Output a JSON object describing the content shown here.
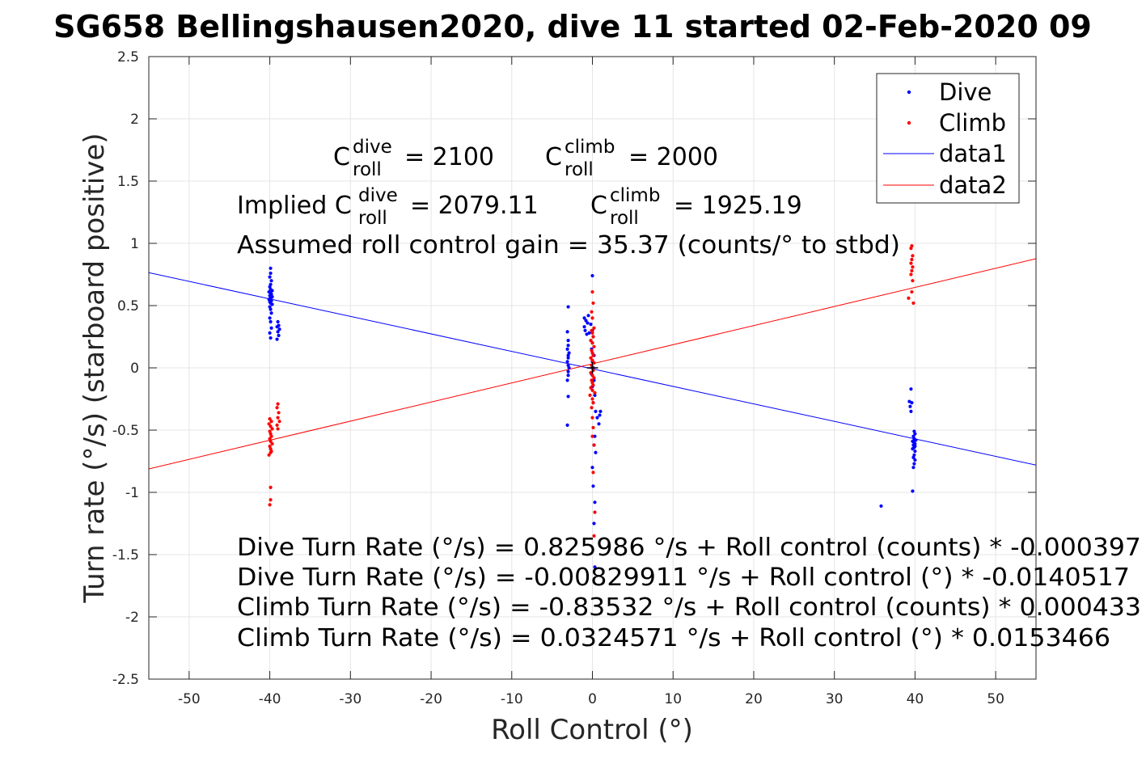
{
  "chart_data": {
    "type": "scatter",
    "title": "SG658 Bellingshausen2020, dive 11 started 02-Feb-2020 09",
    "xlabel": "Roll Control (°)",
    "ylabel": "Turn rate (°/s) (starboard positive)",
    "xlim": [
      -55,
      55
    ],
    "ylim": [
      -2.5,
      2.5
    ],
    "xticks": [
      -50,
      -40,
      -30,
      -20,
      -10,
      0,
      10,
      20,
      30,
      40,
      50
    ],
    "yticks": [
      -2.5,
      -2,
      -1.5,
      -1,
      -0.5,
      0,
      0.5,
      1,
      1.5,
      2,
      2.5
    ],
    "xtick_labels": [
      "-50",
      "-40",
      "-30",
      "-20",
      "-10",
      "0",
      "10",
      "20",
      "30",
      "40",
      "50"
    ],
    "ytick_labels": [
      "-2.5",
      "-2",
      "-1.5",
      "-1",
      "-0.5",
      "0",
      "0.5",
      "1",
      "1.5",
      "2",
      "2.5"
    ],
    "grid": true,
    "legend_position": "top-right",
    "legend": [
      "Dive",
      "Climb",
      "data1",
      "data2"
    ],
    "colors": {
      "dive": "#0000ff",
      "climb": "#ff0000",
      "axes": "#262626",
      "grid": "#e5e5e5"
    },
    "series": [
      {
        "name": "Dive",
        "kind": "points",
        "color": "#0000ff",
        "points": [
          [
            -39.9,
            0.8
          ],
          [
            -39.9,
            0.76
          ],
          [
            -40.0,
            0.73
          ],
          [
            -39.8,
            0.7
          ],
          [
            -39.9,
            0.67
          ],
          [
            -40.0,
            0.65
          ],
          [
            -39.9,
            0.63
          ],
          [
            -39.7,
            0.62
          ],
          [
            -40.1,
            0.61
          ],
          [
            -39.9,
            0.6
          ],
          [
            -39.8,
            0.59
          ],
          [
            -40.0,
            0.58
          ],
          [
            -39.7,
            0.57
          ],
          [
            -39.9,
            0.56
          ],
          [
            -40.1,
            0.55
          ],
          [
            -39.8,
            0.54
          ],
          [
            -40.0,
            0.53
          ],
          [
            -39.9,
            0.52
          ],
          [
            -39.7,
            0.51
          ],
          [
            -40.0,
            0.49
          ],
          [
            -39.9,
            0.47
          ],
          [
            -39.8,
            0.44
          ],
          [
            -40.0,
            0.4
          ],
          [
            -39.9,
            0.37
          ],
          [
            -39.8,
            0.32
          ],
          [
            -40.0,
            0.28
          ],
          [
            -39.9,
            0.24
          ],
          [
            -39.0,
            0.37
          ],
          [
            -38.9,
            0.34
          ],
          [
            -39.1,
            0.33
          ],
          [
            -38.8,
            0.31
          ],
          [
            -39.0,
            0.29
          ],
          [
            -38.9,
            0.26
          ],
          [
            -39.1,
            0.23
          ],
          [
            -3.0,
            0.49
          ],
          [
            -3.1,
            0.29
          ],
          [
            -3.0,
            0.22
          ],
          [
            -3.0,
            0.18
          ],
          [
            -3.1,
            0.15
          ],
          [
            -2.9,
            0.12
          ],
          [
            -3.0,
            0.1
          ],
          [
            -3.0,
            0.08
          ],
          [
            -3.1,
            0.05
          ],
          [
            -3.0,
            0.02
          ],
          [
            -2.9,
            0.0
          ],
          [
            -3.0,
            -0.03
          ],
          [
            -3.0,
            -0.06
          ],
          [
            -3.1,
            -0.1
          ],
          [
            -3.0,
            -0.23
          ],
          [
            -3.1,
            -0.46
          ],
          [
            -1.0,
            0.4
          ],
          [
            -0.8,
            0.38
          ],
          [
            -0.6,
            0.36
          ],
          [
            -1.0,
            0.33
          ],
          [
            -0.5,
            0.42
          ],
          [
            -0.9,
            0.3
          ],
          [
            -0.4,
            0.28
          ],
          [
            -0.7,
            0.27
          ],
          [
            0.0,
            0.74
          ],
          [
            -0.2,
            0.35
          ],
          [
            0.0,
            0.3
          ],
          [
            0.1,
            0.25
          ],
          [
            0.0,
            0.2
          ],
          [
            -0.1,
            0.15
          ],
          [
            0.2,
            0.1
          ],
          [
            0.0,
            0.05
          ],
          [
            0.1,
            0.0
          ],
          [
            -0.1,
            -0.05
          ],
          [
            0.2,
            -0.1
          ],
          [
            0.0,
            -0.15
          ],
          [
            0.3,
            -0.22
          ],
          [
            0.1,
            -0.28
          ],
          [
            0.4,
            -0.35
          ],
          [
            0.6,
            -0.4
          ],
          [
            0.9,
            -0.38
          ],
          [
            1.0,
            -0.35
          ],
          [
            0.8,
            -0.45
          ],
          [
            0.3,
            -0.55
          ],
          [
            0.2,
            -0.62
          ],
          [
            0.4,
            -0.68
          ],
          [
            0.0,
            -0.8
          ],
          [
            0.1,
            -0.95
          ],
          [
            0.3,
            -1.08
          ],
          [
            0.2,
            -1.25
          ],
          [
            0.3,
            -1.6
          ],
          [
            39.5,
            -0.17
          ],
          [
            39.3,
            -0.27
          ],
          [
            39.6,
            -0.28
          ],
          [
            39.4,
            -0.31
          ],
          [
            39.5,
            -0.35
          ],
          [
            39.9,
            -0.51
          ],
          [
            40.0,
            -0.53
          ],
          [
            39.8,
            -0.55
          ],
          [
            39.9,
            -0.57
          ],
          [
            40.1,
            -0.58
          ],
          [
            39.7,
            -0.59
          ],
          [
            39.9,
            -0.6
          ],
          [
            40.0,
            -0.61
          ],
          [
            39.8,
            -0.62
          ],
          [
            40.0,
            -0.63
          ],
          [
            39.9,
            -0.64
          ],
          [
            39.7,
            -0.65
          ],
          [
            40.0,
            -0.67
          ],
          [
            39.9,
            -0.7
          ],
          [
            39.8,
            -0.72
          ],
          [
            40.0,
            -0.74
          ],
          [
            39.9,
            -0.77
          ],
          [
            39.8,
            -0.8
          ],
          [
            39.7,
            -0.99
          ],
          [
            35.8,
            -1.11
          ]
        ]
      },
      {
        "name": "Climb",
        "kind": "points",
        "color": "#ff0000",
        "points": [
          [
            -40.0,
            -0.41
          ],
          [
            -39.8,
            -0.43
          ],
          [
            -40.1,
            -0.45
          ],
          [
            -39.9,
            -0.47
          ],
          [
            -39.7,
            -0.49
          ],
          [
            -40.0,
            -0.51
          ],
          [
            -39.9,
            -0.53
          ],
          [
            -39.8,
            -0.55
          ],
          [
            -40.0,
            -0.57
          ],
          [
            -39.9,
            -0.59
          ],
          [
            -39.7,
            -0.61
          ],
          [
            -40.0,
            -0.63
          ],
          [
            -39.9,
            -0.65
          ],
          [
            -39.8,
            -0.67
          ],
          [
            -40.1,
            -0.7
          ],
          [
            -39.9,
            -0.68
          ],
          [
            -39.0,
            -0.29
          ],
          [
            -39.1,
            -0.32
          ],
          [
            -38.9,
            -0.36
          ],
          [
            -39.0,
            -0.4
          ],
          [
            -38.8,
            -0.43
          ],
          [
            -39.1,
            -0.46
          ],
          [
            -39.0,
            -0.49
          ],
          [
            -39.9,
            -0.96
          ],
          [
            -39.9,
            -1.06
          ],
          [
            -40.0,
            -1.1
          ],
          [
            0.0,
            0.61
          ],
          [
            0.1,
            0.52
          ],
          [
            -0.1,
            0.45
          ],
          [
            0.0,
            0.4
          ],
          [
            0.2,
            0.32
          ],
          [
            -0.1,
            0.3
          ],
          [
            0.0,
            0.28
          ],
          [
            0.1,
            0.25
          ],
          [
            -0.2,
            0.22
          ],
          [
            0.0,
            0.2
          ],
          [
            0.2,
            0.17
          ],
          [
            -0.1,
            0.14
          ],
          [
            0.0,
            0.12
          ],
          [
            0.1,
            0.1
          ],
          [
            -0.2,
            0.08
          ],
          [
            0.0,
            0.06
          ],
          [
            0.2,
            0.04
          ],
          [
            -0.1,
            0.02
          ],
          [
            0.0,
            0.0
          ],
          [
            0.1,
            -0.02
          ],
          [
            -0.2,
            -0.04
          ],
          [
            0.0,
            -0.06
          ],
          [
            0.2,
            -0.08
          ],
          [
            -0.1,
            -0.1
          ],
          [
            0.0,
            -0.12
          ],
          [
            0.1,
            -0.14
          ],
          [
            -0.2,
            -0.16
          ],
          [
            0.0,
            -0.18
          ],
          [
            0.3,
            -0.2
          ],
          [
            -0.3,
            -0.22
          ],
          [
            0.0,
            -0.25
          ],
          [
            0.1,
            -0.28
          ],
          [
            -0.1,
            -0.32
          ],
          [
            0.0,
            -0.4
          ],
          [
            0.1,
            -0.48
          ],
          [
            0.0,
            -0.55
          ],
          [
            0.2,
            -0.62
          ],
          [
            0.1,
            -0.84
          ],
          [
            0.3,
            -1.16
          ],
          [
            0.2,
            -1.35
          ],
          [
            39.6,
            0.98
          ],
          [
            39.5,
            0.96
          ],
          [
            39.7,
            0.9
          ],
          [
            39.6,
            0.87
          ],
          [
            39.5,
            0.84
          ],
          [
            39.7,
            0.81
          ],
          [
            39.6,
            0.78
          ],
          [
            39.5,
            0.75
          ],
          [
            39.7,
            0.7
          ],
          [
            39.6,
            0.61
          ],
          [
            39.2,
            0.56
          ],
          [
            39.8,
            0.52
          ]
        ]
      },
      {
        "name": "data1",
        "kind": "line",
        "color": "#0000ff",
        "x": [
          -55,
          55
        ],
        "y": [
          0.7646,
          -0.7812
        ]
      },
      {
        "name": "data2",
        "kind": "line",
        "color": "#ff0000",
        "x": [
          -55,
          55
        ],
        "y": [
          -0.8116,
          0.8765
        ]
      }
    ],
    "annotations": {
      "c_dive_roll": {
        "base": "C",
        "sup": "dive",
        "sub": "roll",
        "value": "= 2100"
      },
      "c_climb_roll": {
        "base": "C",
        "sup": "climb",
        "sub": "roll",
        "value": "= 2000"
      },
      "implied_prefix": "Implied C",
      "implied_dive": {
        "sup": "dive",
        "sub": "roll",
        "value": "= 2079.11"
      },
      "implied_climb": {
        "base": "C",
        "sup": "climb",
        "sub": "roll",
        "value": "= 1925.19"
      },
      "gain": "Assumed roll control gain = 35.37 (counts/° to stbd)",
      "fits": [
        "Dive Turn Rate (°/s) = 0.825986 °/s + Roll control (counts) * -0.000397",
        "Dive Turn Rate (°/s) = -0.00829911 °/s + Roll control (°) * -0.0140517",
        "Climb Turn Rate (°/s) = -0.83532 °/s + Roll control (counts) * 0.000433",
        "Climb Turn Rate (°/s) = 0.0324571 °/s + Roll control (°) * 0.0153466"
      ]
    }
  }
}
